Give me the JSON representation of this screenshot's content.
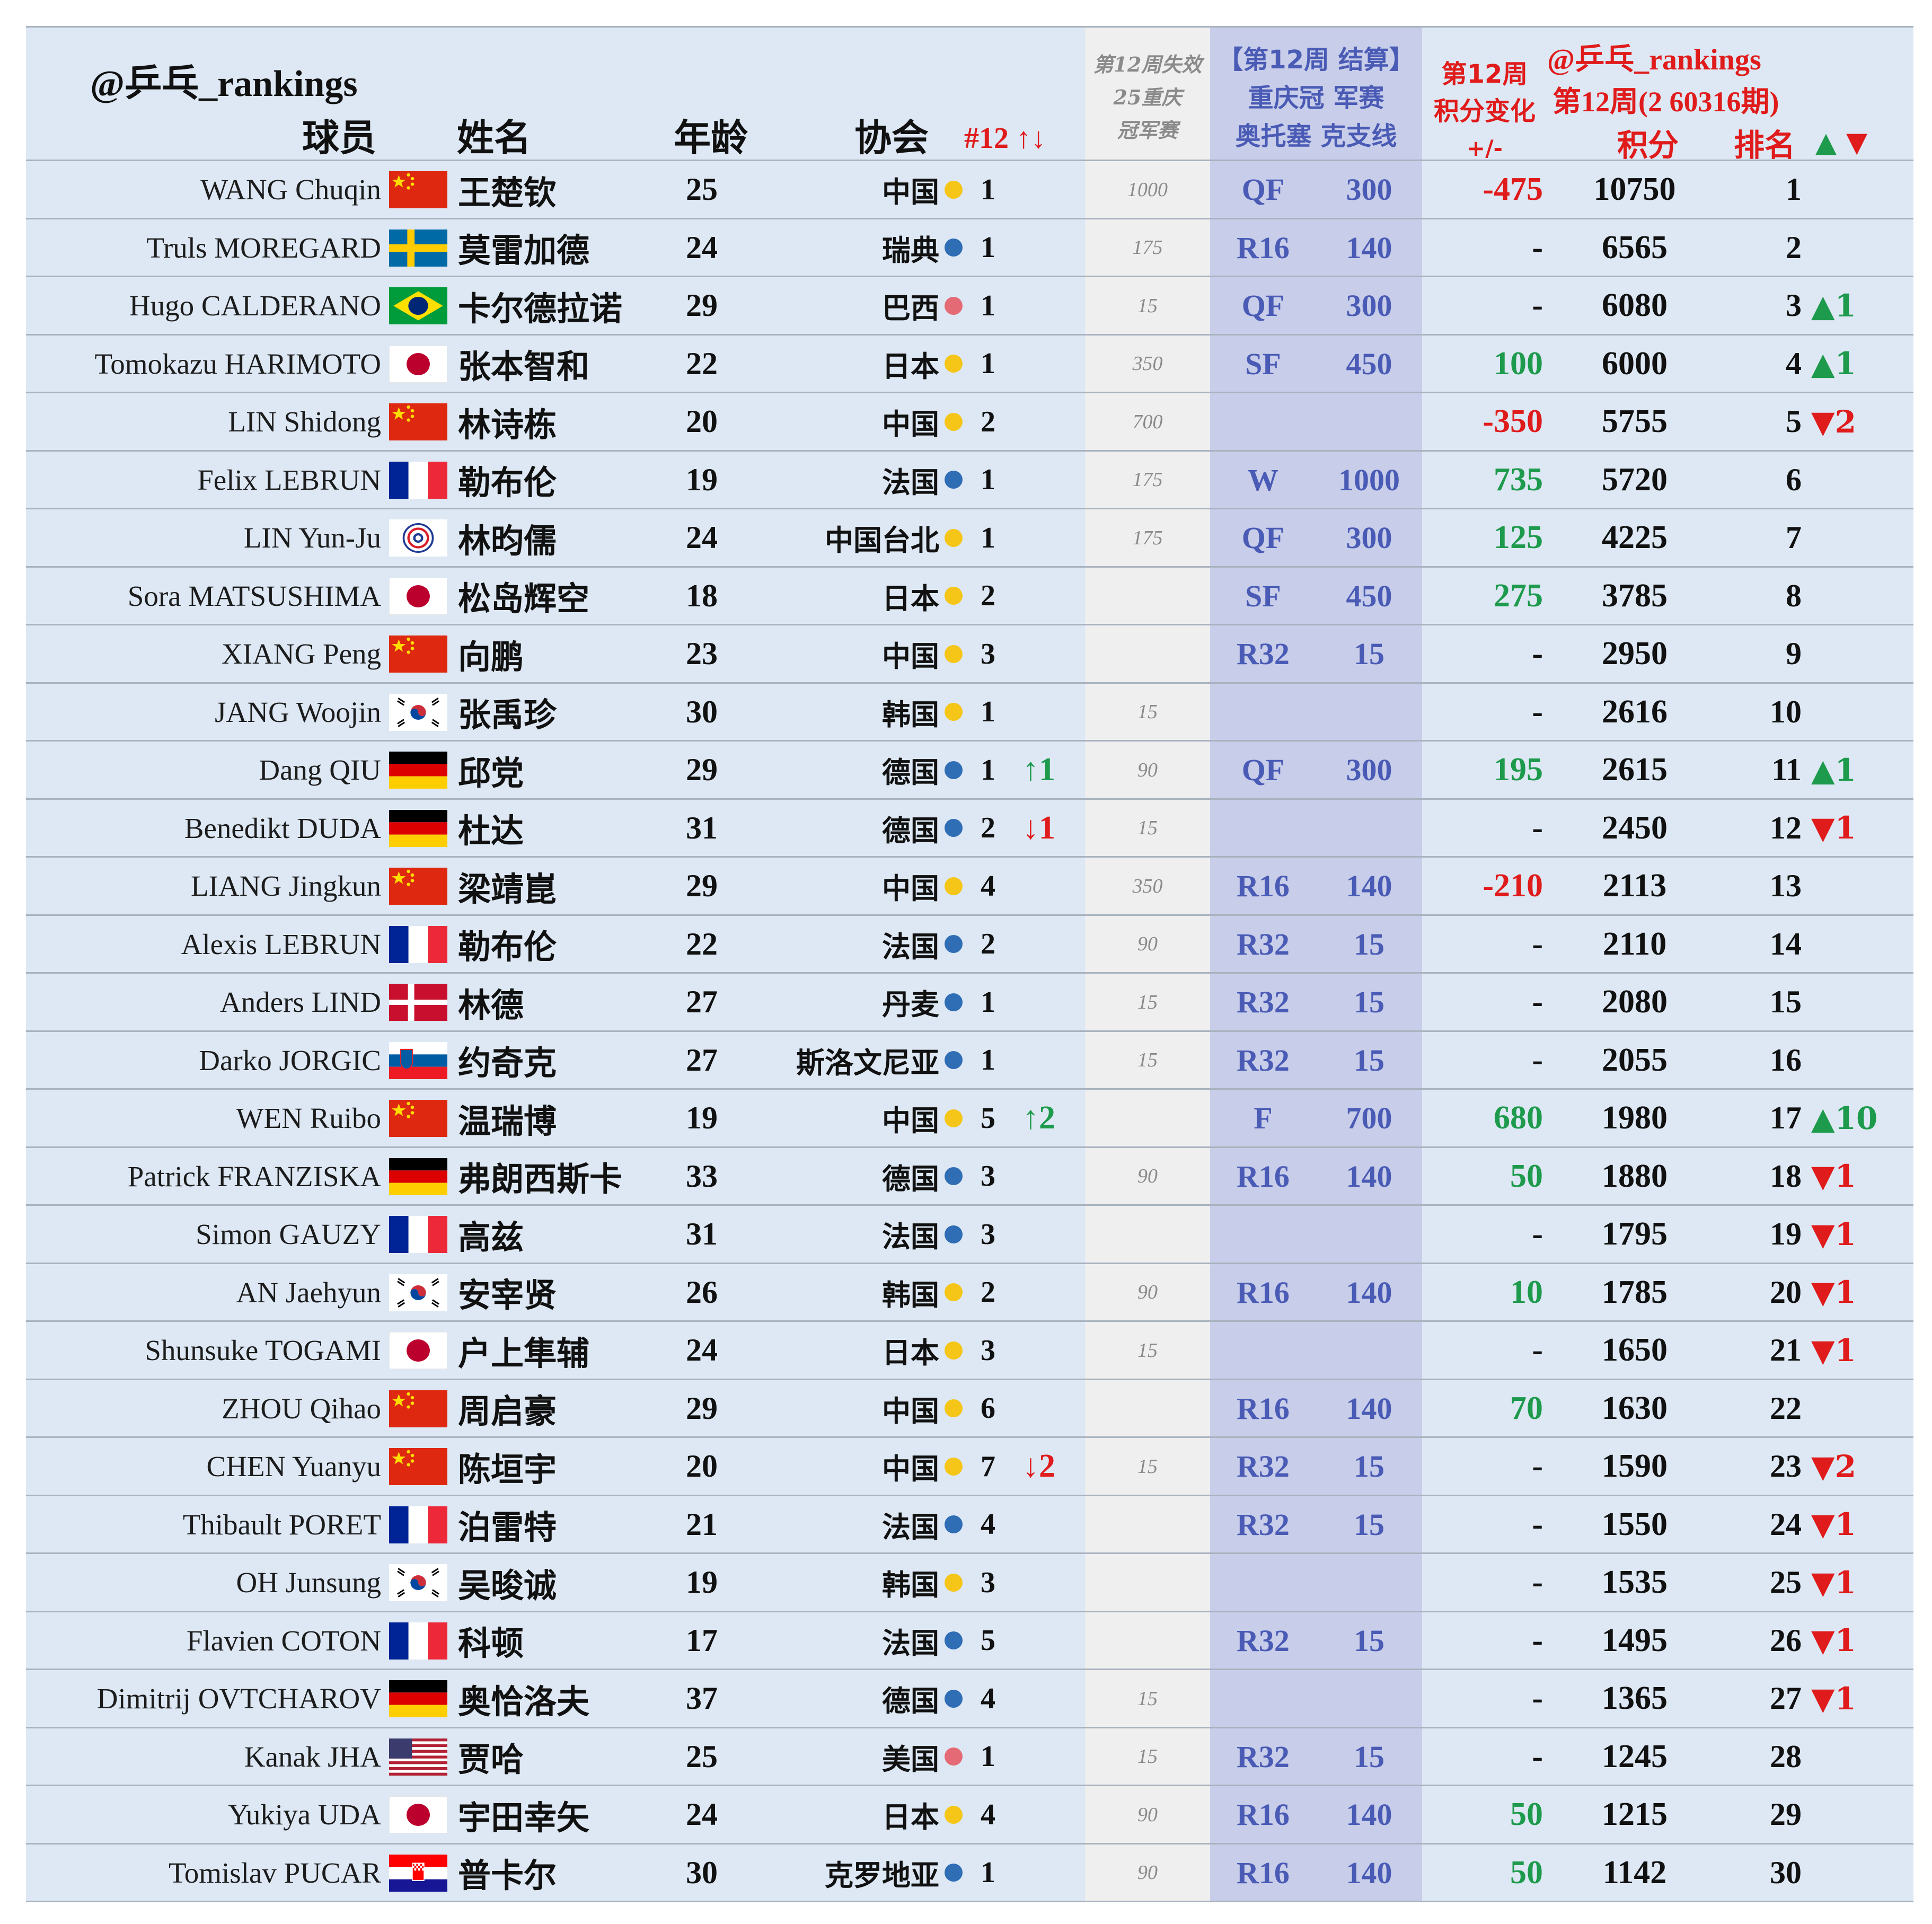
{
  "header": {
    "watermark_left": "@乒乓_rankings",
    "col_player": "球员",
    "col_name": "姓名",
    "col_age": "年龄",
    "col_assoc": "协会",
    "col_rank_in_assoc": "#12 ↑↓",
    "lost_title": [
      "第12周失效",
      "25重庆",
      "冠军赛"
    ],
    "result_title": [
      "【第12周 结算】",
      "重庆冠 军赛",
      "奥托塞 克支线"
    ],
    "change_title": [
      "第12周",
      "积分变化",
      "+/-"
    ],
    "points_watermark": "@乒乓_rankings",
    "points_period": "第12周(2 60316期)",
    "col_points": "积分",
    "col_rank": "排名",
    "col_move": "▲ ▼"
  },
  "colors": {
    "row_bg": "#dde8f4",
    "lost_bg": "#efefef",
    "result_bg": "#c8cde9",
    "red": "#e01b1b",
    "green": "#1e9a4c",
    "result_text": "#4a5bb5",
    "assoc_yellow": "#f5c518",
    "assoc_blue": "#2f6db5",
    "assoc_pink": "#e46a76"
  },
  "rows": [
    {
      "en": "WANG Chuqin",
      "flag": "china-flag",
      "cn": "王楚钦",
      "age": "25",
      "assoc": "中国",
      "dot": "yellow",
      "arank": "1",
      "amove": "",
      "lost": "1000",
      "round": "QF",
      "rpts": "300",
      "chg": "-475",
      "chgc": "red",
      "pts": "10750",
      "rank": "1",
      "mv": ""
    },
    {
      "en": "Truls MOREGARD",
      "flag": "sweden-flag",
      "cn": "莫雷加德",
      "age": "24",
      "assoc": "瑞典",
      "dot": "blue",
      "arank": "1",
      "amove": "",
      "lost": "175",
      "round": "R16",
      "rpts": "140",
      "chg": "-",
      "chgc": "black",
      "pts": "6565",
      "rank": "2",
      "mv": ""
    },
    {
      "en": "Hugo CALDERANO",
      "flag": "brazil-flag",
      "cn": "卡尔德拉诺",
      "age": "29",
      "assoc": "巴西",
      "dot": "pink",
      "arank": "1",
      "amove": "",
      "lost": "15",
      "round": "QF",
      "rpts": "300",
      "chg": "-",
      "chgc": "black",
      "pts": "6080",
      "rank": "3",
      "mv": "▲1"
    },
    {
      "en": "Tomokazu HARIMOTO",
      "flag": "japan-flag",
      "cn": "张本智和",
      "age": "22",
      "assoc": "日本",
      "dot": "yellow",
      "arank": "1",
      "amove": "",
      "lost": "350",
      "round": "SF",
      "rpts": "450",
      "chg": "100",
      "chgc": "green",
      "pts": "6000",
      "rank": "4",
      "mv": "▲1"
    },
    {
      "en": "LIN Shidong",
      "flag": "china-flag",
      "cn": "林诗栋",
      "age": "20",
      "assoc": "中国",
      "dot": "yellow",
      "arank": "2",
      "amove": "",
      "lost": "700",
      "round": "",
      "rpts": "",
      "chg": "-350",
      "chgc": "red",
      "pts": "5755",
      "rank": "5",
      "mv": "▼2"
    },
    {
      "en": "Felix LEBRUN",
      "flag": "france-flag",
      "cn": "勒布伦",
      "age": "19",
      "assoc": "法国",
      "dot": "blue",
      "arank": "1",
      "amove": "",
      "lost": "175",
      "round": "W",
      "rpts": "1000",
      "chg": "735",
      "chgc": "green",
      "pts": "5720",
      "rank": "6",
      "mv": ""
    },
    {
      "en": "LIN Yun-Ju",
      "flag": "chinese-taipei-flag",
      "cn": "林昀儒",
      "age": "24",
      "assoc": "中国台北",
      "dot": "yellow",
      "arank": "1",
      "amove": "",
      "lost": "175",
      "round": "QF",
      "rpts": "300",
      "chg": "125",
      "chgc": "green",
      "pts": "4225",
      "rank": "7",
      "mv": ""
    },
    {
      "en": "Sora MATSUSHIMA",
      "flag": "japan-flag",
      "cn": "松岛辉空",
      "age": "18",
      "assoc": "日本",
      "dot": "yellow",
      "arank": "2",
      "amove": "",
      "lost": "",
      "round": "SF",
      "rpts": "450",
      "chg": "275",
      "chgc": "green",
      "pts": "3785",
      "rank": "8",
      "mv": ""
    },
    {
      "en": "XIANG Peng",
      "flag": "china-flag",
      "cn": "向鹏",
      "age": "23",
      "assoc": "中国",
      "dot": "yellow",
      "arank": "3",
      "amove": "",
      "lost": "",
      "round": "R32",
      "rpts": "15",
      "chg": "-",
      "chgc": "black",
      "pts": "2950",
      "rank": "9",
      "mv": ""
    },
    {
      "en": "JANG Woojin",
      "flag": "korea-flag",
      "cn": "张禹珍",
      "age": "30",
      "assoc": "韩国",
      "dot": "yellow",
      "arank": "1",
      "amove": "",
      "lost": "15",
      "round": "",
      "rpts": "",
      "chg": "-",
      "chgc": "black",
      "pts": "2616",
      "rank": "10",
      "mv": ""
    },
    {
      "en": "Dang QIU",
      "flag": "germany-flag",
      "cn": "邱党",
      "age": "29",
      "assoc": "德国",
      "dot": "blue",
      "arank": "1",
      "amove": "↑1",
      "lost": "90",
      "round": "QF",
      "rpts": "300",
      "chg": "195",
      "chgc": "green",
      "pts": "2615",
      "rank": "11",
      "mv": "▲1"
    },
    {
      "en": "Benedikt DUDA",
      "flag": "germany-flag",
      "cn": "杜达",
      "age": "31",
      "assoc": "德国",
      "dot": "blue",
      "arank": "2",
      "amove": "↓1",
      "lost": "15",
      "round": "",
      "rpts": "",
      "chg": "-",
      "chgc": "black",
      "pts": "2450",
      "rank": "12",
      "mv": "▼1"
    },
    {
      "en": "LIANG Jingkun",
      "flag": "china-flag",
      "cn": "梁靖崑",
      "age": "29",
      "assoc": "中国",
      "dot": "yellow",
      "arank": "4",
      "amove": "",
      "lost": "350",
      "round": "R16",
      "rpts": "140",
      "chg": "-210",
      "chgc": "red",
      "pts": "2113",
      "rank": "13",
      "mv": ""
    },
    {
      "en": "Alexis LEBRUN",
      "flag": "france-flag",
      "cn": "勒布伦",
      "age": "22",
      "assoc": "法国",
      "dot": "blue",
      "arank": "2",
      "amove": "",
      "lost": "90",
      "round": "R32",
      "rpts": "15",
      "chg": "-",
      "chgc": "black",
      "pts": "2110",
      "rank": "14",
      "mv": ""
    },
    {
      "en": "Anders LIND",
      "flag": "denmark-flag",
      "cn": "林德",
      "age": "27",
      "assoc": "丹麦",
      "dot": "blue",
      "arank": "1",
      "amove": "",
      "lost": "15",
      "round": "R32",
      "rpts": "15",
      "chg": "-",
      "chgc": "black",
      "pts": "2080",
      "rank": "15",
      "mv": ""
    },
    {
      "en": "Darko JORGIC",
      "flag": "slovenia-flag",
      "cn": "约奇克",
      "age": "27",
      "assoc": "斯洛文尼亚",
      "dot": "blue",
      "arank": "1",
      "amove": "",
      "lost": "15",
      "round": "R32",
      "rpts": "15",
      "chg": "-",
      "chgc": "black",
      "pts": "2055",
      "rank": "16",
      "mv": ""
    },
    {
      "en": "WEN Ruibo",
      "flag": "china-flag",
      "cn": "温瑞博",
      "age": "19",
      "assoc": "中国",
      "dot": "yellow",
      "arank": "5",
      "amove": "↑2",
      "lost": "",
      "round": "F",
      "rpts": "700",
      "chg": "680",
      "chgc": "green",
      "pts": "1980",
      "rank": "17",
      "mv": "▲10"
    },
    {
      "en": "Patrick FRANZISKA",
      "flag": "germany-flag",
      "cn": "弗朗西斯卡",
      "age": "33",
      "assoc": "德国",
      "dot": "blue",
      "arank": "3",
      "amove": "",
      "lost": "90",
      "round": "R16",
      "rpts": "140",
      "chg": "50",
      "chgc": "green",
      "pts": "1880",
      "rank": "18",
      "mv": "▼1"
    },
    {
      "en": "Simon GAUZY",
      "flag": "france-flag",
      "cn": "高兹",
      "age": "31",
      "assoc": "法国",
      "dot": "blue",
      "arank": "3",
      "amove": "",
      "lost": "",
      "round": "",
      "rpts": "",
      "chg": "-",
      "chgc": "black",
      "pts": "1795",
      "rank": "19",
      "mv": "▼1"
    },
    {
      "en": "AN Jaehyun",
      "flag": "korea-flag",
      "cn": "安宰贤",
      "age": "26",
      "assoc": "韩国",
      "dot": "yellow",
      "arank": "2",
      "amove": "",
      "lost": "90",
      "round": "R16",
      "rpts": "140",
      "chg": "10",
      "chgc": "green",
      "pts": "1785",
      "rank": "20",
      "mv": "▼1"
    },
    {
      "en": "Shunsuke TOGAMI",
      "flag": "japan-flag",
      "cn": "户上隼辅",
      "age": "24",
      "assoc": "日本",
      "dot": "yellow",
      "arank": "3",
      "amove": "",
      "lost": "15",
      "round": "",
      "rpts": "",
      "chg": "-",
      "chgc": "black",
      "pts": "1650",
      "rank": "21",
      "mv": "▼1"
    },
    {
      "en": "ZHOU Qihao",
      "flag": "china-flag",
      "cn": "周启豪",
      "age": "29",
      "assoc": "中国",
      "dot": "yellow",
      "arank": "6",
      "amove": "",
      "lost": "",
      "round": "R16",
      "rpts": "140",
      "chg": "70",
      "chgc": "green",
      "pts": "1630",
      "rank": "22",
      "mv": ""
    },
    {
      "en": "CHEN Yuanyu",
      "flag": "china-flag",
      "cn": "陈垣宇",
      "age": "20",
      "assoc": "中国",
      "dot": "yellow",
      "arank": "7",
      "amove": "↓2",
      "lost": "15",
      "round": "R32",
      "rpts": "15",
      "chg": "-",
      "chgc": "black",
      "pts": "1590",
      "rank": "23",
      "mv": "▼2"
    },
    {
      "en": "Thibault PORET",
      "flag": "france-flag",
      "cn": "泊雷特",
      "age": "21",
      "assoc": "法国",
      "dot": "blue",
      "arank": "4",
      "amove": "",
      "lost": "",
      "round": "R32",
      "rpts": "15",
      "chg": "-",
      "chgc": "black",
      "pts": "1550",
      "rank": "24",
      "mv": "▼1"
    },
    {
      "en": "OH Junsung",
      "flag": "korea-flag",
      "cn": "吴晙诚",
      "age": "19",
      "assoc": "韩国",
      "dot": "yellow",
      "arank": "3",
      "amove": "",
      "lost": "",
      "round": "",
      "rpts": "",
      "chg": "-",
      "chgc": "black",
      "pts": "1535",
      "rank": "25",
      "mv": "▼1"
    },
    {
      "en": "Flavien COTON",
      "flag": "france-flag",
      "cn": "科顿",
      "age": "17",
      "assoc": "法国",
      "dot": "blue",
      "arank": "5",
      "amove": "",
      "lost": "",
      "round": "R32",
      "rpts": "15",
      "chg": "-",
      "chgc": "black",
      "pts": "1495",
      "rank": "26",
      "mv": "▼1"
    },
    {
      "en": "Dimitrij OVTCHAROV",
      "flag": "germany-flag",
      "cn": "奥恰洛夫",
      "age": "37",
      "assoc": "德国",
      "dot": "blue",
      "arank": "4",
      "amove": "",
      "lost": "15",
      "round": "",
      "rpts": "",
      "chg": "-",
      "chgc": "black",
      "pts": "1365",
      "rank": "27",
      "mv": "▼1"
    },
    {
      "en": "Kanak JHA",
      "flag": "usa-flag",
      "cn": "贾哈",
      "age": "25",
      "assoc": "美国",
      "dot": "pink",
      "arank": "1",
      "amove": "",
      "lost": "15",
      "round": "R32",
      "rpts": "15",
      "chg": "-",
      "chgc": "black",
      "pts": "1245",
      "rank": "28",
      "mv": ""
    },
    {
      "en": "Yukiya UDA",
      "flag": "japan-flag",
      "cn": "宇田幸矢",
      "age": "24",
      "assoc": "日本",
      "dot": "yellow",
      "arank": "4",
      "amove": "",
      "lost": "90",
      "round": "R16",
      "rpts": "140",
      "chg": "50",
      "chgc": "green",
      "pts": "1215",
      "rank": "29",
      "mv": ""
    },
    {
      "en": "Tomislav PUCAR",
      "flag": "croatia-flag",
      "cn": "普卡尔",
      "age": "30",
      "assoc": "克罗地亚",
      "dot": "blue",
      "arank": "1",
      "amove": "",
      "lost": "90",
      "round": "R16",
      "rpts": "140",
      "chg": "50",
      "chgc": "green",
      "pts": "1142",
      "rank": "30",
      "mv": ""
    }
  ]
}
